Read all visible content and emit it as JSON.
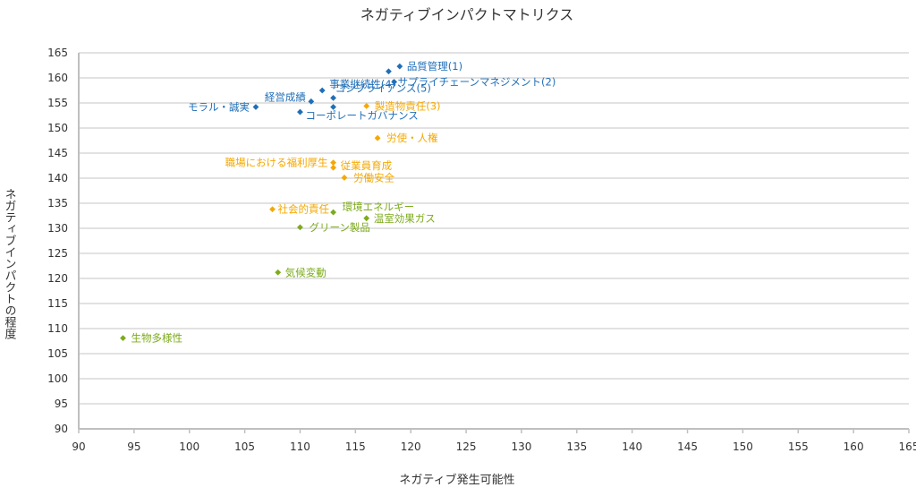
{
  "chart_data": {
    "type": "scatter",
    "title": "ネガティブインパクトマトリクス",
    "xlabel": "ネガティブ発生可能性",
    "ylabel": "ネガティブインパクトの程度",
    "xlim": [
      90,
      165
    ],
    "ylim": [
      90,
      165
    ],
    "xticks": [
      "90",
      "95",
      "100",
      "105",
      "110",
      "115",
      "120",
      "125",
      "130",
      "135",
      "140",
      "145",
      "150",
      "155",
      "160",
      "165"
    ],
    "yticks": [
      "90",
      "95",
      "100",
      "105",
      "110",
      "115",
      "120",
      "125",
      "130",
      "135",
      "140",
      "145",
      "150",
      "155",
      "160",
      "165"
    ],
    "grid": true,
    "legend": "none",
    "colors": {
      "governance": "#1f6fb8",
      "social": "#f5a800",
      "environment": "#7cab1c",
      "grid": "#d9d9d9",
      "axis": "#bfbfbf"
    },
    "points": [
      {
        "label": "品質管理(1)",
        "x": 119,
        "y": 162.3,
        "group": "governance"
      },
      {
        "label": "",
        "x": 118,
        "y": 161.3,
        "group": "governance"
      },
      {
        "label": "サプライチェーンマネジメント(2)",
        "x": 118.5,
        "y": 159.2,
        "group": "governance"
      },
      {
        "label": "事業継続性(4)",
        "x": 112,
        "y": 157.5,
        "group": "governance"
      },
      {
        "label": "コンプライアンス(5)",
        "x": 113,
        "y": 156,
        "group": "governance"
      },
      {
        "label": "経営成績",
        "x": 111,
        "y": 155.3,
        "group": "governance"
      },
      {
        "label": "モラル・誠実",
        "x": 106,
        "y": 154.2,
        "group": "governance"
      },
      {
        "label": "",
        "x": 113,
        "y": 154.2,
        "group": "governance"
      },
      {
        "label": "コーポレートガバナンス",
        "x": 110,
        "y": 153.2,
        "group": "governance"
      },
      {
        "label": "製造物責任(3)",
        "x": 116,
        "y": 154.4,
        "group": "social"
      },
      {
        "label": "労使・人権",
        "x": 117,
        "y": 148,
        "group": "social"
      },
      {
        "label": "職場における福利厚生",
        "x": 113,
        "y": 143.1,
        "group": "social"
      },
      {
        "label": "従業員育成",
        "x": 113,
        "y": 142.1,
        "group": "social"
      },
      {
        "label": "労働安全",
        "x": 114,
        "y": 140.1,
        "group": "social"
      },
      {
        "label": "社会的責任",
        "x": 107.5,
        "y": 133.8,
        "group": "social"
      },
      {
        "label": "環境エネルギー",
        "x": 113,
        "y": 133.2,
        "group": "environment"
      },
      {
        "label": "温室効果ガス",
        "x": 116,
        "y": 132,
        "group": "environment"
      },
      {
        "label": "グリーン製品",
        "x": 110,
        "y": 130.2,
        "group": "environment"
      },
      {
        "label": "気候変動",
        "x": 108,
        "y": 121.2,
        "group": "environment"
      },
      {
        "label": "生物多様性",
        "x": 94,
        "y": 108.1,
        "group": "environment"
      }
    ]
  }
}
